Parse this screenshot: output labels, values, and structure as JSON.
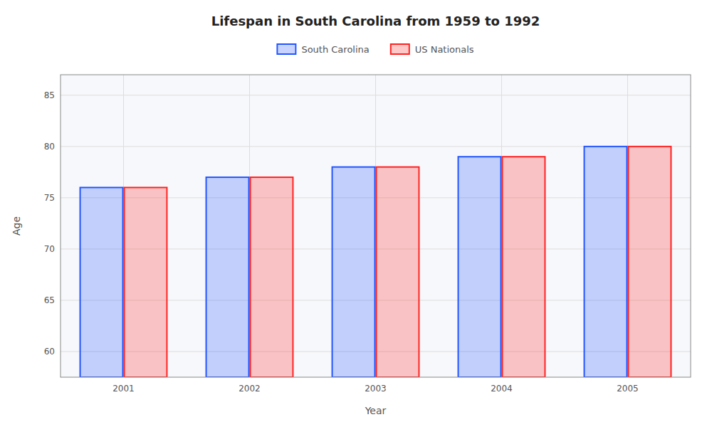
{
  "chart_data": {
    "type": "bar",
    "title": "Lifespan in South Carolina from 1959 to 1992",
    "x_label": "Year",
    "y_label": "Age",
    "categories": [
      "2001",
      "2002",
      "2003",
      "2004",
      "2005"
    ],
    "series": [
      {
        "name": "South Carolina",
        "color": "#2255ff",
        "values": [
          76,
          77,
          78,
          79,
          80
        ]
      },
      {
        "name": "US Nationals",
        "color": "#ff2222",
        "values": [
          76,
          77,
          78,
          79,
          80
        ]
      }
    ],
    "ylim": [
      57.5,
      87
    ],
    "yticks": [
      60,
      65,
      70,
      75,
      80,
      85
    ],
    "grid": true,
    "legend": "top"
  }
}
